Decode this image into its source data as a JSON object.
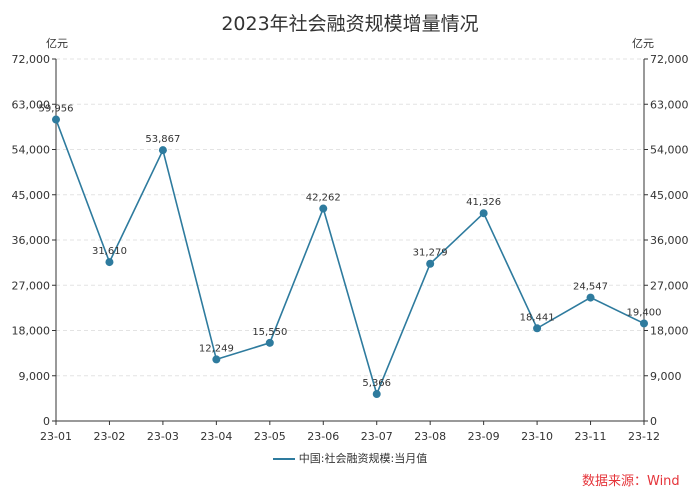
{
  "chart_data": {
    "type": "line",
    "title": "2023年社会融资规模增量情况",
    "y_unit_left": "亿元",
    "y_unit_right": "亿元",
    "categories": [
      "23-01",
      "23-02",
      "23-03",
      "23-04",
      "23-05",
      "23-06",
      "23-07",
      "23-08",
      "23-09",
      "23-10",
      "23-11",
      "23-12"
    ],
    "series": [
      {
        "name": "中国:社会融资规模:当月值",
        "values": [
          59956,
          31610,
          53867,
          12249,
          15550,
          42262,
          5366,
          31279,
          41326,
          18441,
          24547,
          19400
        ],
        "labels": [
          "59,956",
          "31,610",
          "53,867",
          "12,249",
          "15,550",
          "42,262",
          "5,366",
          "31,279",
          "41,326",
          "18,441",
          "24,547",
          "19,400"
        ],
        "color": "#2e7b9e"
      }
    ],
    "ylim": [
      0,
      72000
    ],
    "yticks": [
      "0",
      "9,000",
      "18,000",
      "27,000",
      "36,000",
      "45,000",
      "54,000",
      "63,000",
      "72,000"
    ],
    "ytick_values": [
      0,
      9000,
      18000,
      27000,
      36000,
      45000,
      54000,
      63000,
      72000
    ],
    "dual_axis_mirror": true,
    "grid": true,
    "legend_position": "bottom"
  },
  "source": "数据来源：Wind"
}
